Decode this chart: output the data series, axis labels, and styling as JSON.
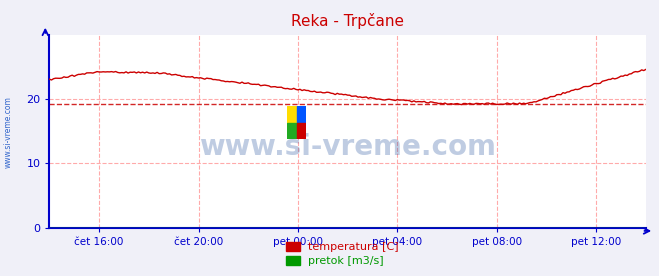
{
  "title": "Reka - Trpčane",
  "title_color": "#cc0000",
  "bg_color": "#f0f0f8",
  "plot_bg_color": "#ffffff",
  "xlim": [
    0,
    288
  ],
  "ylim": [
    0,
    30
  ],
  "yticks": [
    0,
    10,
    20
  ],
  "y_avg_line": 19.2,
  "x_tick_positions": [
    24,
    72,
    120,
    168,
    216,
    264
  ],
  "x_tick_labels": [
    "čet 16:00",
    "čet 20:00",
    "pet 00:00",
    "pet 04:00",
    "pet 08:00",
    "pet 12:00"
  ],
  "grid_color": "#ffaaaa",
  "axis_color": "#0000cc",
  "tick_color": "#0000cc",
  "watermark": "www.si-vreme.com",
  "watermark_color": "#1a4a99",
  "watermark_alpha": 0.28,
  "sidebar_text": "www.si-vreme.com",
  "sidebar_color": "#3366cc",
  "legend_items": [
    {
      "label": "temperatura [C]",
      "color": "#cc0000"
    },
    {
      "label": "pretok [m3/s]",
      "color": "#009900"
    }
  ],
  "temp_color": "#cc0000",
  "flow_color": "#009900",
  "avg_line_color": "#cc0000"
}
